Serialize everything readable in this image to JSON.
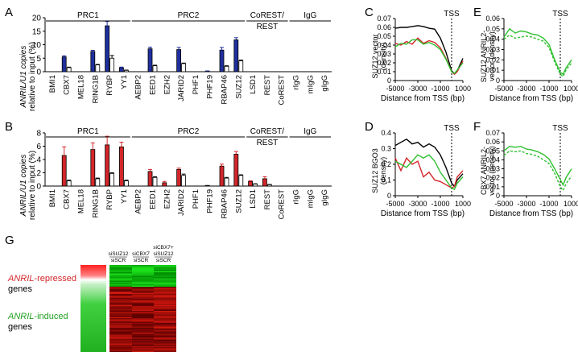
{
  "panels": {
    "A": "A",
    "B": "B",
    "C": "C",
    "D": "D",
    "E": "E",
    "F": "F",
    "G": "G"
  },
  "groups": [
    {
      "label": "PRC1"
    },
    {
      "label": "PRC2"
    },
    {
      "label": "CoREST/\nREST"
    },
    {
      "label": "IgG"
    }
  ],
  "colors": {
    "blue": "#1f2f9e",
    "red": "#d4262a",
    "black": "#000000",
    "green": "#2ec02e",
    "white": "#ffffff"
  },
  "chart_data": [
    {
      "id": "A",
      "type": "bar",
      "ylabel_1": "ANRIL/U1 copies",
      "ylabel_2": "relative to input (%)",
      "ylim": [
        0,
        20
      ],
      "yticks": [
        "0",
        "5",
        "10",
        "15",
        "20"
      ],
      "categories": [
        "BMI1",
        "CBX7",
        "MEL18",
        "RING1B",
        "RYBP",
        "YY1",
        "AEBP2",
        "EED1",
        "EZH2",
        "JARID2",
        "PHF1",
        "PHF19",
        "RBAP46",
        "SUZ12",
        "LSD1",
        "REST",
        "CoREST",
        "rIgG",
        "mIgG",
        "gIgG"
      ],
      "series": [
        {
          "values": [
            0,
            5.5,
            0,
            7.5,
            17,
            1.5,
            0,
            8.5,
            0,
            8.2,
            0,
            0.2,
            8,
            11.8,
            0,
            0,
            0,
            0,
            0,
            0
          ],
          "errors": [
            0,
            0.4,
            0,
            0.4,
            1.6,
            0.2,
            0,
            0.6,
            0,
            0.8,
            0,
            0.1,
            1.0,
            0.8,
            0,
            0,
            0,
            0,
            0,
            0
          ],
          "color": "blue"
        },
        {
          "values": [
            0,
            1.5,
            0,
            2.5,
            5,
            0.5,
            0,
            2.2,
            0,
            3,
            0,
            0,
            2,
            4,
            0,
            0,
            0,
            0,
            0,
            0
          ],
          "errors": [
            0,
            0.2,
            0,
            0.2,
            1.0,
            0.1,
            0,
            0.2,
            0,
            0.2,
            0,
            0,
            0.2,
            0.3,
            0,
            0,
            0,
            0,
            0,
            0
          ],
          "color": "white"
        }
      ]
    },
    {
      "id": "B",
      "type": "bar",
      "ylabel_1": "ANRIL/U1 copies",
      "ylabel_2": "relative to input (%)",
      "ylim": [
        0,
        8
      ],
      "yticks": [
        "0",
        "2",
        "4",
        "6",
        "8"
      ],
      "categories": [
        "BMI1",
        "CBX7",
        "MEL18",
        "RING1B",
        "RYBP",
        "YY1",
        "AEBP2",
        "EED1",
        "EZH2",
        "JARID2",
        "PHF1",
        "PHF19",
        "RBAP46",
        "SUZ12",
        "LSD1",
        "REST",
        "CoREST",
        "rIgG",
        "mIgG",
        "gIgG"
      ],
      "series": [
        {
          "values": [
            0,
            4.6,
            0,
            5.5,
            6.2,
            5.9,
            0,
            2.2,
            0.5,
            2.5,
            0,
            0.1,
            3.0,
            4.8,
            0.7,
            1.1,
            0,
            0,
            0,
            0
          ],
          "errors": [
            0,
            1.3,
            0,
            1.0,
            1.3,
            0.7,
            0,
            0.3,
            0.2,
            0.2,
            0,
            0,
            0.3,
            0.4,
            0.1,
            0.3,
            0,
            0,
            0,
            0
          ],
          "color": "red"
        },
        {
          "values": [
            0,
            0.8,
            0,
            1.1,
            1.9,
            0.8,
            0,
            1.3,
            0,
            1.6,
            0,
            0,
            1.2,
            1.6,
            0.3,
            0.2,
            0,
            0,
            0,
            0
          ],
          "errors": [
            0,
            0.1,
            0,
            0.1,
            0.1,
            0.1,
            0,
            0.1,
            0,
            0.2,
            0,
            0,
            0.1,
            0.1,
            0.05,
            0.05,
            0,
            0,
            0,
            0
          ],
          "color": "white"
        }
      ]
    },
    {
      "id": "C",
      "type": "line",
      "ylabel_1": "SUZ12 vector",
      "ylabel_2": "(density)",
      "xlabel": "Distance from TSS (bp)",
      "xlim": [
        -5000,
        1000
      ],
      "ylim": [
        0,
        0.07
      ],
      "xticks": [
        "-5000",
        "-3000",
        "-1000",
        "1000"
      ],
      "yticks": [
        "0",
        "0.01",
        "0.02",
        "0.03",
        "0.04",
        "0.05",
        "0.06",
        "0.07"
      ],
      "annotation": "TSS",
      "x": [
        -5000,
        -4500,
        -4000,
        -3500,
        -3000,
        -2500,
        -2000,
        -1500,
        -1000,
        -500,
        0,
        250,
        500,
        1000
      ],
      "series": [
        {
          "color": "black",
          "values": [
            0.059,
            0.06,
            0.06,
            0.061,
            0.062,
            0.061,
            0.059,
            0.058,
            0.048,
            0.032,
            0.011,
            0.008,
            0.011,
            0.025
          ]
        },
        {
          "color": "red",
          "values": [
            0.042,
            0.04,
            0.044,
            0.041,
            0.048,
            0.042,
            0.045,
            0.043,
            0.037,
            0.025,
            0.01,
            0.007,
            0.01,
            0.022
          ]
        },
        {
          "color": "green",
          "values": [
            0.038,
            0.042,
            0.041,
            0.046,
            0.046,
            0.041,
            0.043,
            0.04,
            0.035,
            0.024,
            0.01,
            0.008,
            0.012,
            0.02
          ]
        }
      ]
    },
    {
      "id": "D",
      "type": "line",
      "ylabel_1": "SUZ12 BGO3",
      "ylabel_2": "(density)",
      "xlabel": "Distance from TSS (bp)",
      "xlim": [
        -5000,
        1000
      ],
      "ylim": [
        0,
        0.4
      ],
      "xticks": [
        "-5000",
        "-3000",
        "-1000",
        "1000"
      ],
      "yticks": [
        "0",
        "0.1",
        "0.2",
        "0.3",
        "0.4"
      ],
      "annotation": "TSS",
      "x": [
        -5000,
        -4500,
        -4000,
        -3500,
        -3000,
        -2500,
        -2000,
        -1500,
        -1000,
        -500,
        0,
        250,
        500,
        1000
      ],
      "series": [
        {
          "color": "black",
          "values": [
            0.32,
            0.34,
            0.36,
            0.33,
            0.34,
            0.31,
            0.33,
            0.31,
            0.26,
            0.18,
            0.08,
            0.06,
            0.1,
            0.14
          ]
        },
        {
          "color": "red",
          "values": [
            0.24,
            0.16,
            0.24,
            0.2,
            0.22,
            0.12,
            0.15,
            0.1,
            0.09,
            0.07,
            0.05,
            0.06,
            0.12,
            0.16
          ]
        },
        {
          "color": "green",
          "values": [
            0.22,
            0.2,
            0.18,
            0.22,
            0.26,
            0.24,
            0.26,
            0.22,
            0.15,
            0.1,
            0.05,
            0.04,
            0.08,
            0.12
          ]
        }
      ]
    },
    {
      "id": "E",
      "type": "line",
      "ylabel_1": "SUZ12 ANRIL2-",
      "ylabel_2": "vector (density)",
      "xlabel": "Distance from TSS (bp)",
      "xlim": [
        -5000,
        1000
      ],
      "ylim": [
        0,
        0.06
      ],
      "xticks": [
        "-5000",
        "-3000",
        "-1000",
        "1000"
      ],
      "yticks": [
        "0",
        "0.01",
        "0.02",
        "0.03",
        "0.04",
        "0.05",
        "0.06"
      ],
      "annotation": "TSS",
      "x": [
        -5000,
        -4500,
        -4000,
        -3500,
        -3000,
        -2500,
        -2000,
        -1500,
        -1000,
        -500,
        0,
        250,
        500,
        1000
      ],
      "series": [
        {
          "color": "green",
          "style": "solid",
          "values": [
            0.042,
            0.05,
            0.046,
            0.048,
            0.047,
            0.045,
            0.044,
            0.041,
            0.035,
            0.02,
            0.008,
            0.006,
            0.012,
            0.02
          ]
        },
        {
          "color": "green",
          "style": "dashed",
          "values": [
            0.04,
            0.044,
            0.041,
            0.042,
            0.043,
            0.042,
            0.04,
            0.038,
            0.032,
            0.018,
            0.006,
            0.004,
            0.01,
            0.017
          ]
        }
      ]
    },
    {
      "id": "F",
      "type": "line",
      "ylabel_1": "CBX7 ANRIL2-",
      "ylabel_2": "vector (density)",
      "xlabel": "Distance from TSS (bp)",
      "xlim": [
        -5000,
        1000
      ],
      "ylim": [
        0,
        0.07
      ],
      "xticks": [
        "-5000",
        "-3000",
        "-1000",
        "1000"
      ],
      "yticks": [
        "0",
        "0.01",
        "0.02",
        "0.03",
        "0.04",
        "0.05",
        "0.06",
        "0.07"
      ],
      "annotation": "TSS",
      "x": [
        -5000,
        -4500,
        -4000,
        -3500,
        -3000,
        -2500,
        -2000,
        -1500,
        -1000,
        -500,
        0,
        250,
        500,
        1000
      ],
      "series": [
        {
          "color": "green",
          "style": "solid",
          "values": [
            0.05,
            0.055,
            0.054,
            0.055,
            0.052,
            0.051,
            0.049,
            0.046,
            0.041,
            0.03,
            0.018,
            0.012,
            0.02,
            0.03
          ]
        },
        {
          "color": "green",
          "style": "dashed",
          "values": [
            0.045,
            0.05,
            0.049,
            0.05,
            0.047,
            0.046,
            0.044,
            0.04,
            0.036,
            0.025,
            0.01,
            0.006,
            0.013,
            0.022
          ]
        }
      ]
    }
  ],
  "heatmap": {
    "columns": [
      {
        "l1": "",
        "l2": "siSUZ12",
        "l3": "siSCR"
      },
      {
        "l1": "",
        "l2": "siCBX7",
        "l3": "siSCR"
      },
      {
        "l1": "siCBX7+",
        "l2": "siSUZ12",
        "l3": "siSCR"
      }
    ],
    "repressed_label_italic": "ANRIL",
    "repressed_label_rest": "-repressed",
    "repressed_label_2": "genes",
    "induced_label_italic": "ANRIL",
    "induced_label_rest": "-induced",
    "induced_label_2": "genes"
  }
}
